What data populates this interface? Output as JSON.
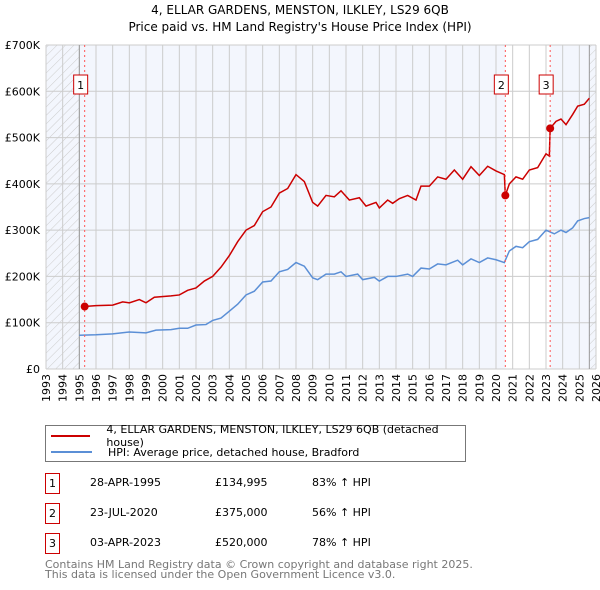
{
  "chart_data": {
    "type": "line",
    "title": "4, ELLAR GARDENS, MENSTON, ILKLEY, LS29 6QB",
    "subtitle": "Price paid vs. HM Land Registry's House Price Index (HPI)",
    "xlim": [
      1993,
      2026
    ],
    "ylim": [
      0,
      700000
    ],
    "x_ticks": [
      "1993",
      "1994",
      "1995",
      "1996",
      "1997",
      "1998",
      "1999",
      "2000",
      "2001",
      "2002",
      "2003",
      "2004",
      "2005",
      "2006",
      "2007",
      "2008",
      "2009",
      "2010",
      "2011",
      "2012",
      "2013",
      "2014",
      "2015",
      "2016",
      "2017",
      "2018",
      "2019",
      "2020",
      "2021",
      "2022",
      "2023",
      "2024",
      "2025",
      "2026"
    ],
    "y_ticks": [
      {
        "v": 0,
        "label": "£0"
      },
      {
        "v": 100000,
        "label": "£100K"
      },
      {
        "v": 200000,
        "label": "£200K"
      },
      {
        "v": 300000,
        "label": "£300K"
      },
      {
        "v": 400000,
        "label": "£400K"
      },
      {
        "v": 500000,
        "label": "£500K"
      },
      {
        "v": 600000,
        "label": "£600K"
      },
      {
        "v": 700000,
        "label": "£700K"
      }
    ],
    "grid": true,
    "hatched_ranges": [
      [
        1993,
        1995.0
      ],
      [
        2025.6,
        2026
      ]
    ],
    "series": [
      {
        "name": "4, ELLAR GARDENS, MENSTON, ILKLEY, LS29 6QB (detached house)",
        "color": "#cc0000",
        "points": [
          [
            1995.3,
            135
          ],
          [
            1996,
            137
          ],
          [
            1997,
            138
          ],
          [
            1997.6,
            145
          ],
          [
            1998,
            143
          ],
          [
            1998.6,
            150
          ],
          [
            1999,
            143
          ],
          [
            1999.5,
            155
          ],
          [
            2000.5,
            158
          ],
          [
            2001,
            160
          ],
          [
            2001.5,
            170
          ],
          [
            2002,
            175
          ],
          [
            2002.5,
            190
          ],
          [
            2003,
            200
          ],
          [
            2003.5,
            220
          ],
          [
            2004,
            245
          ],
          [
            2004.5,
            275
          ],
          [
            2005,
            300
          ],
          [
            2005.5,
            310
          ],
          [
            2006,
            340
          ],
          [
            2006.5,
            350
          ],
          [
            2007,
            380
          ],
          [
            2007.5,
            390
          ],
          [
            2008,
            420
          ],
          [
            2008.5,
            405
          ],
          [
            2009,
            360
          ],
          [
            2009.3,
            352
          ],
          [
            2009.8,
            375
          ],
          [
            2010.3,
            372
          ],
          [
            2010.7,
            385
          ],
          [
            2011.2,
            365
          ],
          [
            2011.8,
            370
          ],
          [
            2012.2,
            352
          ],
          [
            2012.8,
            360
          ],
          [
            2013,
            348
          ],
          [
            2013.5,
            365
          ],
          [
            2013.8,
            358
          ],
          [
            2014.2,
            368
          ],
          [
            2014.7,
            375
          ],
          [
            2015.2,
            365
          ],
          [
            2015.5,
            395
          ],
          [
            2016,
            395
          ],
          [
            2016.5,
            415
          ],
          [
            2017,
            410
          ],
          [
            2017.5,
            430
          ],
          [
            2018,
            410
          ],
          [
            2018.5,
            437
          ],
          [
            2019,
            418
          ],
          [
            2019.5,
            438
          ],
          [
            2020,
            428
          ],
          [
            2020.5,
            420
          ],
          [
            2020.56,
            375
          ],
          [
            2020.8,
            400
          ],
          [
            2021.2,
            415
          ],
          [
            2021.6,
            410
          ],
          [
            2022,
            430
          ],
          [
            2022.5,
            435
          ],
          [
            2023,
            465
          ],
          [
            2023.2,
            460
          ],
          [
            2023.25,
            520
          ],
          [
            2023.6,
            535
          ],
          [
            2023.9,
            540
          ],
          [
            2024.2,
            528
          ],
          [
            2024.6,
            550
          ],
          [
            2024.9,
            568
          ],
          [
            2025.3,
            572
          ],
          [
            2025.6,
            585
          ]
        ]
      },
      {
        "name": "HPI: Average price, detached house, Bradford",
        "color": "#5b8fd6",
        "points": [
          [
            1995,
            73
          ],
          [
            1996,
            74
          ],
          [
            1997,
            76
          ],
          [
            1998,
            80
          ],
          [
            1999,
            78
          ],
          [
            1999.6,
            84
          ],
          [
            2000.5,
            85
          ],
          [
            2001,
            88
          ],
          [
            2001.5,
            88
          ],
          [
            2002,
            95
          ],
          [
            2002.6,
            96
          ],
          [
            2003,
            105
          ],
          [
            2003.5,
            110
          ],
          [
            2004,
            125
          ],
          [
            2004.5,
            140
          ],
          [
            2005,
            160
          ],
          [
            2005.5,
            168
          ],
          [
            2006,
            188
          ],
          [
            2006.5,
            190
          ],
          [
            2007,
            210
          ],
          [
            2007.5,
            215
          ],
          [
            2008,
            230
          ],
          [
            2008.5,
            222
          ],
          [
            2009,
            197
          ],
          [
            2009.3,
            193
          ],
          [
            2009.8,
            205
          ],
          [
            2010.3,
            205
          ],
          [
            2010.7,
            210
          ],
          [
            2011,
            200
          ],
          [
            2011.7,
            205
          ],
          [
            2012,
            193
          ],
          [
            2012.7,
            198
          ],
          [
            2013,
            190
          ],
          [
            2013.5,
            200
          ],
          [
            2014,
            200
          ],
          [
            2014.7,
            205
          ],
          [
            2015,
            200
          ],
          [
            2015.5,
            218
          ],
          [
            2016,
            216
          ],
          [
            2016.5,
            227
          ],
          [
            2017,
            225
          ],
          [
            2017.7,
            235
          ],
          [
            2018,
            225
          ],
          [
            2018.5,
            238
          ],
          [
            2019,
            230
          ],
          [
            2019.5,
            240
          ],
          [
            2020,
            236
          ],
          [
            2020.5,
            230
          ],
          [
            2020.8,
            255
          ],
          [
            2021.2,
            265
          ],
          [
            2021.6,
            262
          ],
          [
            2022,
            275
          ],
          [
            2022.5,
            280
          ],
          [
            2023,
            300
          ],
          [
            2023.5,
            292
          ],
          [
            2023.9,
            300
          ],
          [
            2024.2,
            295
          ],
          [
            2024.6,
            305
          ],
          [
            2024.9,
            320
          ],
          [
            2025.3,
            325
          ],
          [
            2025.6,
            327
          ]
        ]
      }
    ],
    "value_unit": "thousand GBP",
    "transactions": [
      {
        "id": "1",
        "x": 1995.32,
        "price": 134995,
        "date": "28-APR-1995",
        "price_label": "£134,995",
        "hpi": "83% ↑ HPI"
      },
      {
        "id": "2",
        "x": 2020.56,
        "price": 375000,
        "date": "23-JUL-2020",
        "price_label": "£375,000",
        "hpi": "56% ↑ HPI"
      },
      {
        "id": "3",
        "x": 2023.25,
        "price": 520000,
        "date": "03-APR-2023",
        "price_label": "£520,000",
        "hpi": "78% ↑ HPI"
      }
    ]
  },
  "legend": {
    "red": "4, ELLAR GARDENS, MENSTON, ILKLEY, LS29 6QB (detached house)",
    "blue": "HPI: Average price, detached house, Bradford"
  },
  "footer": {
    "line1": "Contains HM Land Registry data © Crown copyright and database right 2025.",
    "line2": "This data is licensed under the Open Government Licence v3.0."
  }
}
